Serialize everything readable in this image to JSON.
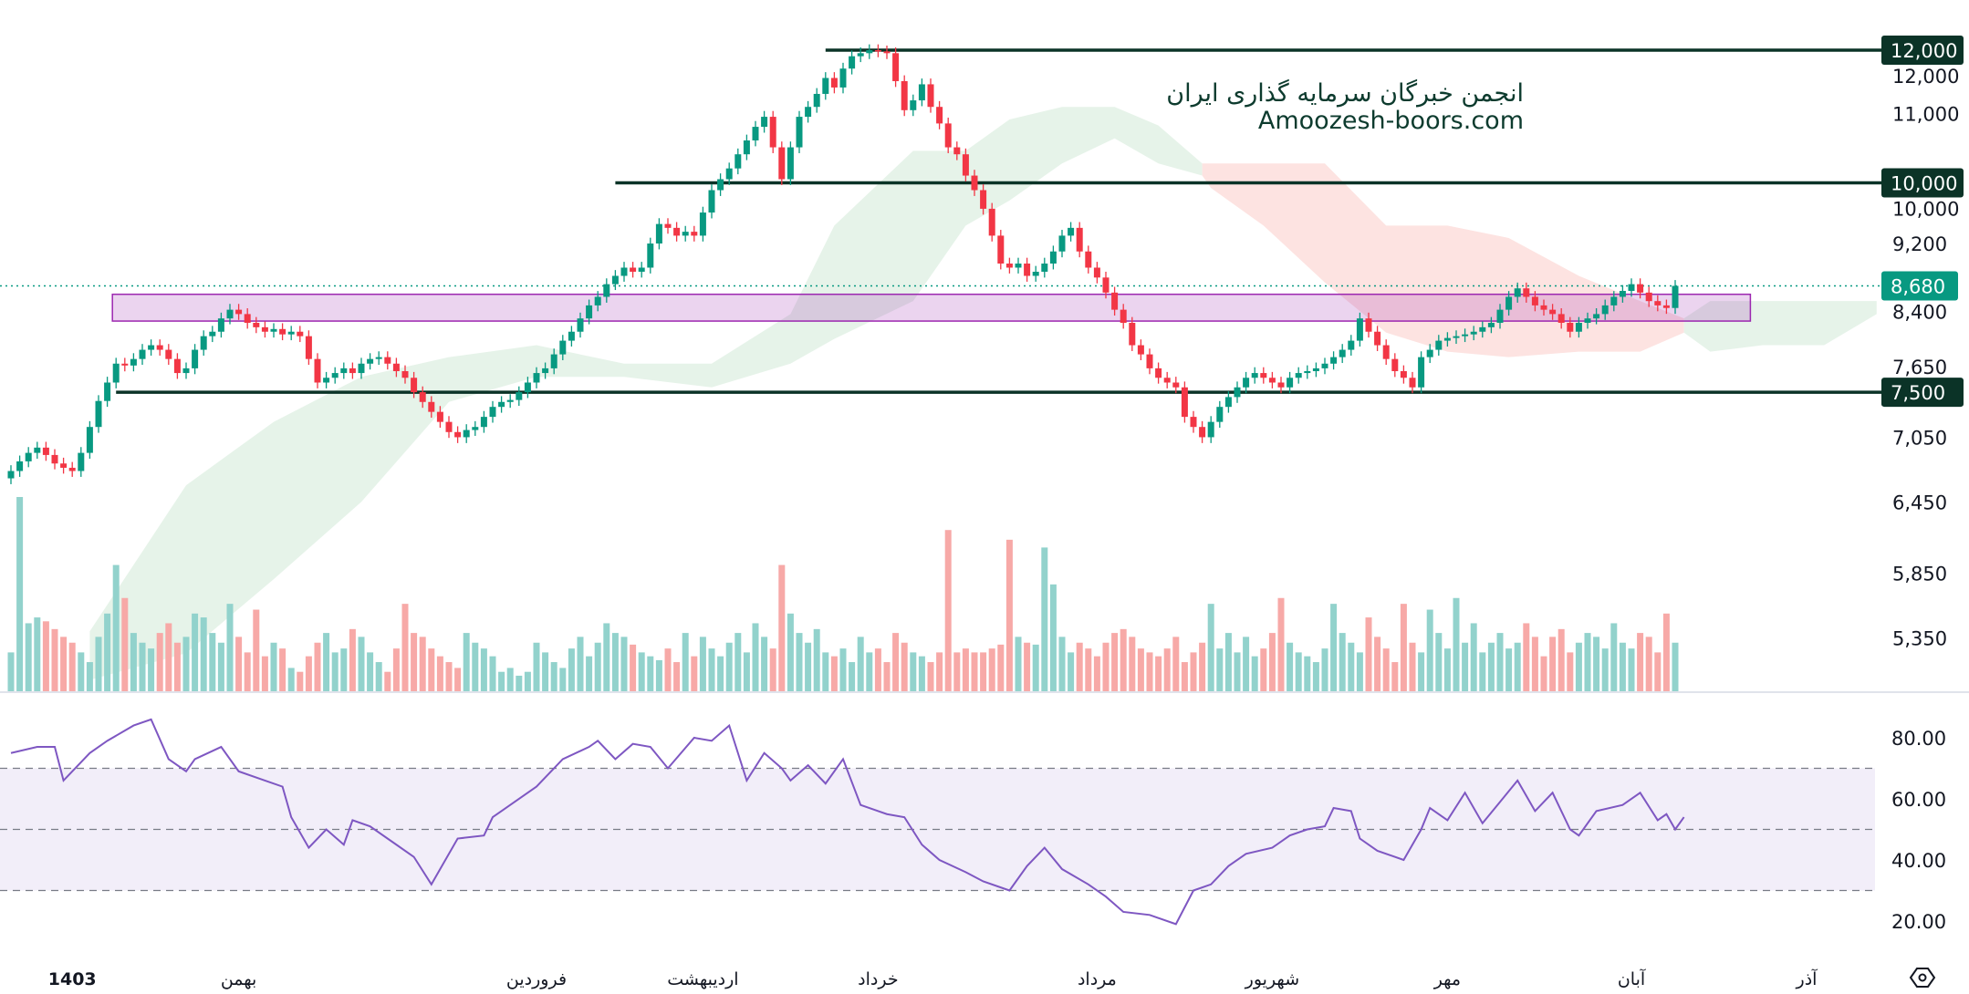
{
  "watermark": {
    "line1": "انجمن خبرگان سرمایه گذاری ایران",
    "line2": "Amoozesh-boors.com"
  },
  "colors": {
    "up": "#089981",
    "down": "#f23645",
    "vol_up": "#92d2cc",
    "vol_down": "#f7a9a7",
    "rsi": "#7e57c2",
    "level": "#0b3327",
    "last": "#089981",
    "zone": "#9c27b0",
    "cloud_up": "#e6f3e9",
    "cloud_down": "#fde3e1"
  },
  "chart_data": {
    "type": "candlestick",
    "scale": "log",
    "price_axis": {
      "ticks": [
        12000,
        11000,
        10000,
        9200,
        8400,
        7650,
        7050,
        6450,
        5850,
        5350
      ],
      "tick_labels": [
        "12,000",
        "11,000",
        "10,000",
        "9,200",
        "8,400",
        "7,650",
        "7,050",
        "6,450",
        "5,850",
        "5,350"
      ]
    },
    "levels": [
      {
        "value": 12000,
        "label": "12,000",
        "from_bar": 93
      },
      {
        "value": 10000,
        "label": "10,000",
        "from_bar": 69
      },
      {
        "value": 7500,
        "label": "7,500",
        "from_bar": 12
      }
    ],
    "last_price": {
      "value": 8680,
      "label": "8,680"
    },
    "zone": {
      "top": 8580,
      "bottom": 8270,
      "from_bar": 12,
      "to_bar": 199
    },
    "x_labels": [
      {
        "bar": 7,
        "label": "1403",
        "bold": true
      },
      {
        "bar": 26,
        "label": "بهمن"
      },
      {
        "bar": 60,
        "label": "فروردین"
      },
      {
        "bar": 79,
        "label": "اردیبهشت"
      },
      {
        "bar": 99,
        "label": "خرداد"
      },
      {
        "bar": 124,
        "label": "مرداد"
      },
      {
        "bar": 144,
        "label": "شهریور"
      },
      {
        "bar": 164,
        "label": "مهر"
      },
      {
        "bar": 185,
        "label": "آبان"
      },
      {
        "bar": 205,
        "label": "آذر"
      }
    ],
    "closes": [
      6730,
      6820,
      6900,
      6950,
      6880,
      6800,
      6760,
      6730,
      6900,
      7150,
      7410,
      7600,
      7800,
      7780,
      7850,
      7950,
      8000,
      7950,
      7850,
      7700,
      7750,
      7950,
      8100,
      8150,
      8300,
      8400,
      8350,
      8250,
      8200,
      8150,
      8180,
      8120,
      8150,
      8100,
      7850,
      7600,
      7650,
      7700,
      7750,
      7700,
      7800,
      7850,
      7870,
      7800,
      7720,
      7650,
      7500,
      7400,
      7300,
      7200,
      7100,
      7050,
      7120,
      7150,
      7250,
      7350,
      7400,
      7420,
      7500,
      7600,
      7700,
      7750,
      7900,
      8050,
      8150,
      8300,
      8450,
      8550,
      8700,
      8800,
      8900,
      8850,
      8900,
      9200,
      9450,
      9400,
      9300,
      9350,
      9300,
      9600,
      9900,
      10050,
      10200,
      10400,
      10600,
      10800,
      10950,
      10500,
      10050,
      10500,
      10950,
      11100,
      11300,
      11550,
      11400,
      11700,
      11900,
      11950,
      12000,
      11980,
      11950,
      11500,
      11050,
      11200,
      11450,
      11100,
      10850,
      10500,
      10400,
      10100,
      9900,
      9650,
      9300,
      8950,
      8900,
      8950,
      8800,
      8850,
      8950,
      9100,
      9300,
      9400,
      9100,
      8900,
      8780,
      8600,
      8400,
      8250,
      8000,
      7900,
      7750,
      7650,
      7600,
      7550,
      7250,
      7150,
      7050,
      7200,
      7350,
      7450,
      7550,
      7650,
      7700,
      7650,
      7600,
      7550,
      7650,
      7700,
      7720,
      7750,
      7800,
      7870,
      7950,
      8050,
      8300,
      8150,
      8000,
      7850,
      7720,
      7650,
      7550,
      7870,
      7950,
      8050,
      8080,
      8100,
      8120,
      8150,
      8200,
      8250,
      8400,
      8550,
      8650,
      8550,
      8450,
      8400,
      8350,
      8250,
      8150,
      8250,
      8300,
      8350,
      8450,
      8550,
      8620,
      8700,
      8600,
      8500,
      8450,
      8420,
      8680
    ],
    "volumes": [
      20,
      100,
      35,
      38,
      36,
      32,
      28,
      25,
      20,
      15,
      28,
      40,
      65,
      48,
      30,
      25,
      22,
      30,
      35,
      25,
      28,
      40,
      38,
      30,
      25,
      45,
      28,
      20,
      42,
      18,
      25,
      22,
      12,
      10,
      18,
      25,
      30,
      20,
      22,
      32,
      28,
      20,
      15,
      10,
      22,
      45,
      30,
      28,
      22,
      18,
      15,
      12,
      30,
      25,
      22,
      18,
      10,
      12,
      8,
      10,
      25,
      20,
      15,
      12,
      22,
      28,
      18,
      25,
      35,
      30,
      28,
      24,
      20,
      18,
      16,
      22,
      15,
      30,
      18,
      28,
      22,
      18,
      25,
      30,
      20,
      35,
      28,
      22,
      65,
      40,
      30,
      25,
      32,
      20,
      18,
      22,
      15,
      28,
      20,
      22,
      15,
      30,
      25,
      20,
      18,
      15,
      20,
      83,
      20,
      22,
      20,
      20,
      22,
      24,
      78,
      28,
      25,
      24,
      74,
      55,
      28,
      20,
      25,
      22,
      18,
      25,
      30,
      32,
      28,
      22,
      20,
      18,
      22,
      28,
      15,
      20,
      25,
      45,
      22,
      30,
      20,
      28,
      18,
      22,
      30,
      48,
      25,
      20,
      18,
      15,
      22,
      45,
      30,
      25,
      20,
      38,
      28,
      22,
      15,
      45,
      25,
      20,
      42,
      30,
      22,
      48,
      25,
      35,
      20,
      25,
      30,
      22,
      25,
      35,
      28,
      18,
      28,
      32,
      20,
      25,
      30,
      28,
      22,
      35,
      25,
      22,
      30,
      28,
      20,
      40,
      25
    ],
    "cloud": [
      {
        "trend": "up",
        "points": [
          [
            9,
            5400,
            5050
          ],
          [
            20,
            6600,
            5240
          ],
          [
            30,
            7200,
            5800
          ],
          [
            40,
            7660,
            6450
          ],
          [
            50,
            7870,
            7400
          ],
          [
            60,
            8000,
            7660
          ],
          [
            70,
            7800,
            7660
          ],
          [
            80,
            7800,
            7550
          ],
          [
            89,
            8350,
            7800
          ],
          [
            94,
            9430,
            8070
          ],
          [
            103,
            10450,
            8500
          ],
          [
            109,
            10450,
            9430
          ],
          [
            114,
            10910,
            9760
          ],
          [
            120,
            11100,
            10270
          ],
          [
            126,
            11100,
            10630
          ],
          [
            131,
            10820,
            10270
          ],
          [
            136,
            10270,
            10100
          ]
        ]
      },
      {
        "trend": "down",
        "points": [
          [
            136,
            10270,
            10100
          ],
          [
            137,
            10270,
            9930
          ],
          [
            143,
            10270,
            9430
          ],
          [
            150,
            10270,
            8720
          ],
          [
            157,
            9430,
            8140
          ],
          [
            164,
            9430,
            7930
          ],
          [
            171,
            9270,
            7870
          ],
          [
            179,
            8800,
            7930
          ],
          [
            186,
            8500,
            7930
          ],
          [
            191,
            8300,
            8140
          ]
        ]
      },
      {
        "trend": "up",
        "points": [
          [
            191,
            8300,
            8140
          ],
          [
            194,
            8500,
            7930
          ],
          [
            200,
            8500,
            8000
          ],
          [
            207,
            8500,
            8000
          ],
          [
            213,
            8500,
            8350
          ]
        ]
      }
    ],
    "rsi": {
      "period": 14,
      "ticks": [
        80,
        60,
        40,
        20
      ],
      "tick_labels": [
        "80.00",
        "60.00",
        "40.00",
        "20.00"
      ],
      "band": [
        30,
        70
      ],
      "mid": 50,
      "points": [
        [
          0,
          75
        ],
        [
          3,
          77
        ],
        [
          5,
          77
        ],
        [
          6,
          66
        ],
        [
          9,
          75
        ],
        [
          11,
          79
        ],
        [
          14,
          84
        ],
        [
          16,
          86
        ],
        [
          18,
          73
        ],
        [
          20,
          69
        ],
        [
          21,
          73
        ],
        [
          24,
          77
        ],
        [
          26,
          69
        ],
        [
          29,
          66
        ],
        [
          31,
          64
        ],
        [
          32,
          54
        ],
        [
          34,
          44
        ],
        [
          36,
          50
        ],
        [
          38,
          45
        ],
        [
          39,
          53
        ],
        [
          41,
          51
        ],
        [
          44,
          45
        ],
        [
          46,
          41
        ],
        [
          48,
          32
        ],
        [
          49,
          37
        ],
        [
          51,
          47
        ],
        [
          54,
          48
        ],
        [
          55,
          54
        ],
        [
          57,
          58
        ],
        [
          60,
          64
        ],
        [
          63,
          73
        ],
        [
          66,
          77
        ],
        [
          67,
          79
        ],
        [
          69,
          73
        ],
        [
          71,
          78
        ],
        [
          73,
          77
        ],
        [
          75,
          70
        ],
        [
          78,
          80
        ],
        [
          80,
          79
        ],
        [
          82,
          84
        ],
        [
          84,
          66
        ],
        [
          86,
          75
        ],
        [
          88,
          70
        ],
        [
          89,
          66
        ],
        [
          91,
          71
        ],
        [
          93,
          65
        ],
        [
          95,
          73
        ],
        [
          97,
          58
        ],
        [
          100,
          55
        ],
        [
          102,
          54
        ],
        [
          104,
          45
        ],
        [
          106,
          40
        ],
        [
          109,
          36
        ],
        [
          111,
          33
        ],
        [
          114,
          30
        ],
        [
          116,
          38
        ],
        [
          118,
          44
        ],
        [
          120,
          37
        ],
        [
          123,
          32
        ],
        [
          125,
          28
        ],
        [
          127,
          23
        ],
        [
          130,
          22
        ],
        [
          133,
          19
        ],
        [
          135,
          30
        ],
        [
          137,
          32
        ],
        [
          139,
          38
        ],
        [
          141,
          42
        ],
        [
          144,
          44
        ],
        [
          146,
          48
        ],
        [
          148,
          50
        ],
        [
          150,
          51
        ],
        [
          151,
          57
        ],
        [
          153,
          56
        ],
        [
          154,
          47
        ],
        [
          156,
          43
        ],
        [
          159,
          40
        ],
        [
          161,
          50
        ],
        [
          162,
          57
        ],
        [
          164,
          53
        ],
        [
          166,
          62
        ],
        [
          168,
          52
        ],
        [
          170,
          59
        ],
        [
          172,
          66
        ],
        [
          174,
          56
        ],
        [
          176,
          62
        ],
        [
          178,
          50
        ],
        [
          179,
          48
        ],
        [
          181,
          56
        ],
        [
          184,
          58
        ],
        [
          186,
          62
        ],
        [
          188,
          53
        ],
        [
          189,
          55
        ],
        [
          190,
          50
        ],
        [
          191,
          54
        ]
      ]
    }
  }
}
